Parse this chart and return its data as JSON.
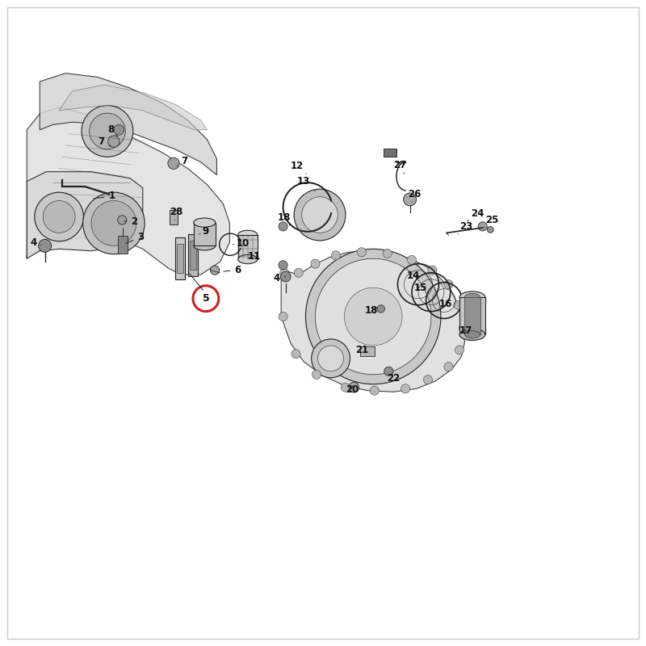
{
  "bg_color": "#ffffff",
  "border_color": "#cccccc",
  "line_color": "#222222",
  "red_circle_color": "#cc2222",
  "label_color": "#111111"
}
